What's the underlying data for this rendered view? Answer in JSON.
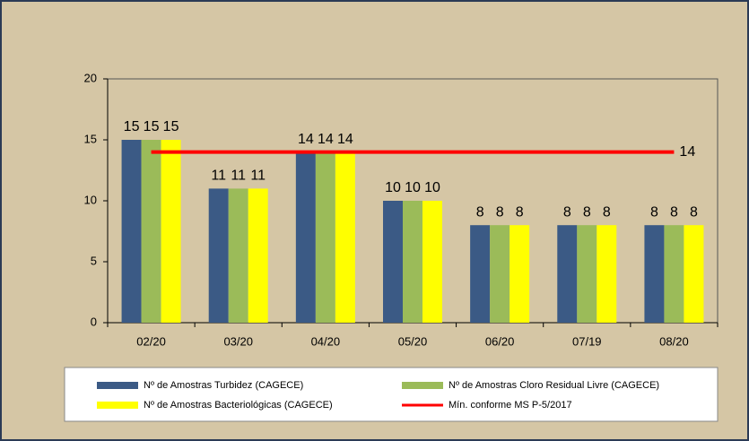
{
  "chart_data": {
    "type": "bar",
    "categories": [
      "02/20",
      "03/20",
      "04/20",
      "05/20",
      "06/20",
      "07/19",
      "08/20"
    ],
    "series": [
      {
        "name": "Nº de Amostras Turbidez (CAGECE)",
        "color": "#3b5a85",
        "values": [
          15,
          11,
          14,
          10,
          8,
          8,
          8
        ]
      },
      {
        "name": "Nº de Amostras Cloro Residual Livre (CAGECE)",
        "color": "#9bbb59",
        "values": [
          15,
          11,
          14,
          10,
          8,
          8,
          8
        ]
      },
      {
        "name": "Nº de Amostras Bacteriológicas (CAGECE)",
        "color": "#ffff00",
        "values": [
          15,
          11,
          14,
          10,
          8,
          8,
          8
        ]
      },
      {
        "name": "Mín. conforme MS  P-5/2017",
        "color": "#ff0000",
        "type": "line",
        "values": [
          14,
          14,
          14,
          14,
          14,
          14,
          14
        ]
      }
    ],
    "ylim": [
      0,
      20
    ],
    "yticks": [
      0,
      5,
      10,
      15,
      20
    ],
    "grid": false
  }
}
